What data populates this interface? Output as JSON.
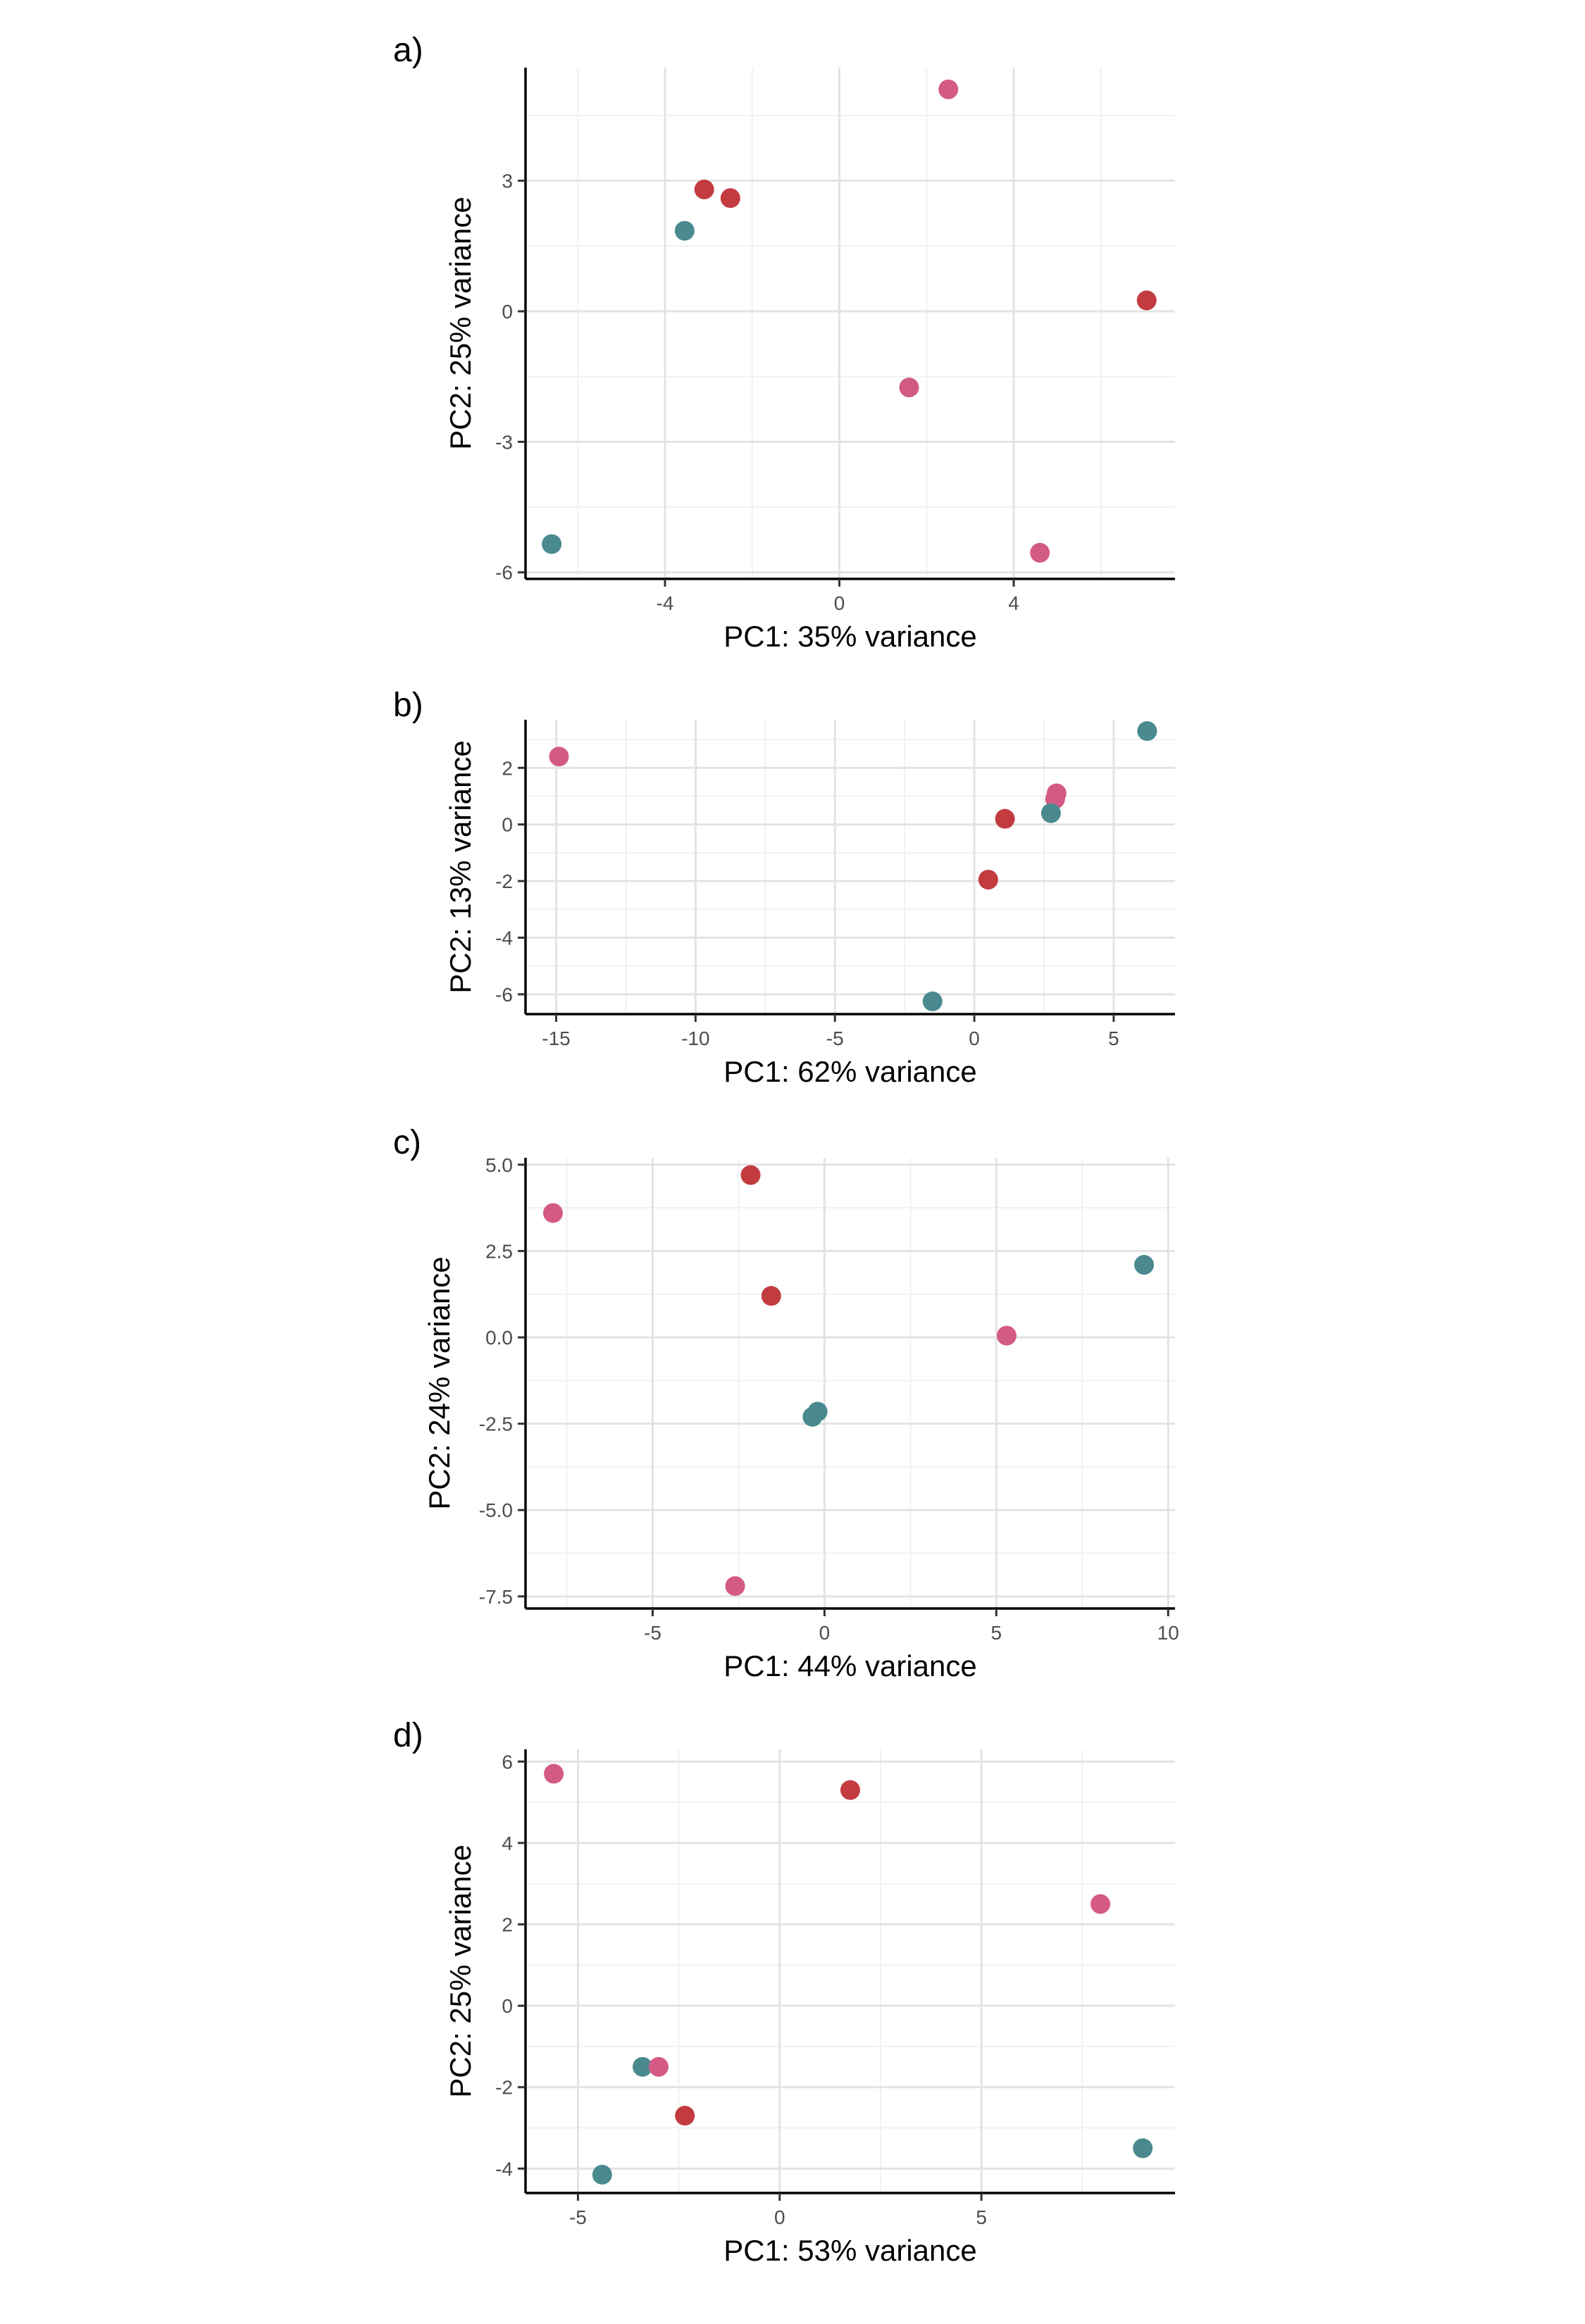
{
  "colors": {
    "red": "#c23b3f",
    "pink": "#d45a86",
    "teal": "#4a8a8f"
  },
  "chart_data": [
    {
      "type": "scatter",
      "panel_label": "a)",
      "xlabel": "PC1: 35% variance",
      "ylabel": "PC2: 25% variance",
      "xlim": [
        -7.2,
        7.7
      ],
      "ylim": [
        -6.15,
        5.6
      ],
      "xticks": [
        -4,
        0,
        4
      ],
      "xtick_labels": [
        "-4",
        "0",
        "4"
      ],
      "yticks": [
        -6,
        -3,
        0,
        3
      ],
      "ytick_labels": [
        "-6",
        "-3",
        "0",
        "3"
      ],
      "points": [
        {
          "x": 2.5,
          "y": 5.1,
          "color": "pink"
        },
        {
          "x": -3.1,
          "y": 2.8,
          "color": "red"
        },
        {
          "x": -2.5,
          "y": 2.6,
          "color": "red"
        },
        {
          "x": -3.55,
          "y": 1.85,
          "color": "teal"
        },
        {
          "x": 7.05,
          "y": 0.25,
          "color": "red"
        },
        {
          "x": 1.6,
          "y": -1.75,
          "color": "pink"
        },
        {
          "x": -6.6,
          "y": -5.35,
          "color": "teal"
        },
        {
          "x": 4.6,
          "y": -5.55,
          "color": "pink"
        }
      ]
    },
    {
      "type": "scatter",
      "panel_label": "b)",
      "xlabel": "PC1: 62% variance",
      "ylabel": "PC2: 13% variance",
      "xlim": [
        -16.1,
        7.2
      ],
      "ylim": [
        -6.7,
        3.7
      ],
      "xticks": [
        -15,
        -10,
        -5,
        0,
        5
      ],
      "xtick_labels": [
        "-15",
        "-10",
        "-5",
        "0",
        "5"
      ],
      "yticks": [
        -6,
        -4,
        -2,
        0,
        2
      ],
      "ytick_labels": [
        "-6",
        "-4",
        "-2",
        "0",
        "2"
      ],
      "points": [
        {
          "x": 6.2,
          "y": 3.3,
          "color": "teal"
        },
        {
          "x": -14.9,
          "y": 2.4,
          "color": "pink"
        },
        {
          "x": 2.95,
          "y": 1.1,
          "color": "pink"
        },
        {
          "x": 2.9,
          "y": 0.9,
          "color": "pink"
        },
        {
          "x": 1.1,
          "y": 0.2,
          "color": "red"
        },
        {
          "x": 2.75,
          "y": 0.4,
          "color": "teal"
        },
        {
          "x": 0.5,
          "y": -1.95,
          "color": "red"
        },
        {
          "x": -1.5,
          "y": -6.25,
          "color": "teal"
        }
      ]
    },
    {
      "type": "scatter",
      "panel_label": "c)",
      "xlabel": "PC1: 44% variance",
      "ylabel": "PC2: 24% variance",
      "xlim": [
        -8.7,
        10.2
      ],
      "ylim": [
        -7.85,
        5.2
      ],
      "xticks": [
        -5,
        0,
        5,
        10
      ],
      "xtick_labels": [
        "-5",
        "0",
        "5",
        "10"
      ],
      "yticks": [
        -7.5,
        -5.0,
        -2.5,
        0.0,
        2.5,
        5.0
      ],
      "ytick_labels": [
        "-7.5",
        "-5.0",
        "-2.5",
        "0.0",
        "2.5",
        "5.0"
      ],
      "points": [
        {
          "x": -2.15,
          "y": 4.7,
          "color": "red"
        },
        {
          "x": -7.9,
          "y": 3.6,
          "color": "pink"
        },
        {
          "x": 9.3,
          "y": 2.1,
          "color": "teal"
        },
        {
          "x": -1.55,
          "y": 1.2,
          "color": "red"
        },
        {
          "x": 5.3,
          "y": 0.05,
          "color": "pink"
        },
        {
          "x": -0.2,
          "y": -2.15,
          "color": "teal"
        },
        {
          "x": -0.35,
          "y": -2.3,
          "color": "teal"
        },
        {
          "x": -2.6,
          "y": -7.2,
          "color": "pink"
        }
      ]
    },
    {
      "type": "scatter",
      "panel_label": "d)",
      "xlabel": "PC1: 53% variance",
      "ylabel": "PC2: 25% variance",
      "xlim": [
        -6.3,
        9.8
      ],
      "ylim": [
        -4.6,
        6.3
      ],
      "xticks": [
        -5,
        0,
        5
      ],
      "xtick_labels": [
        "-5",
        "0",
        "5"
      ],
      "yticks": [
        -4,
        -2,
        0,
        2,
        4,
        6
      ],
      "ytick_labels": [
        "-4",
        "-2",
        "0",
        "2",
        "4",
        "6"
      ],
      "points": [
        {
          "x": -5.6,
          "y": 5.7,
          "color": "pink"
        },
        {
          "x": 1.75,
          "y": 5.3,
          "color": "red"
        },
        {
          "x": 7.95,
          "y": 2.5,
          "color": "pink"
        },
        {
          "x": -3.4,
          "y": -1.5,
          "color": "teal"
        },
        {
          "x": -3.0,
          "y": -1.5,
          "color": "pink"
        },
        {
          "x": -2.35,
          "y": -2.7,
          "color": "red"
        },
        {
          "x": 9.0,
          "y": -3.5,
          "color": "teal"
        },
        {
          "x": -4.4,
          "y": -4.15,
          "color": "teal"
        }
      ]
    }
  ]
}
